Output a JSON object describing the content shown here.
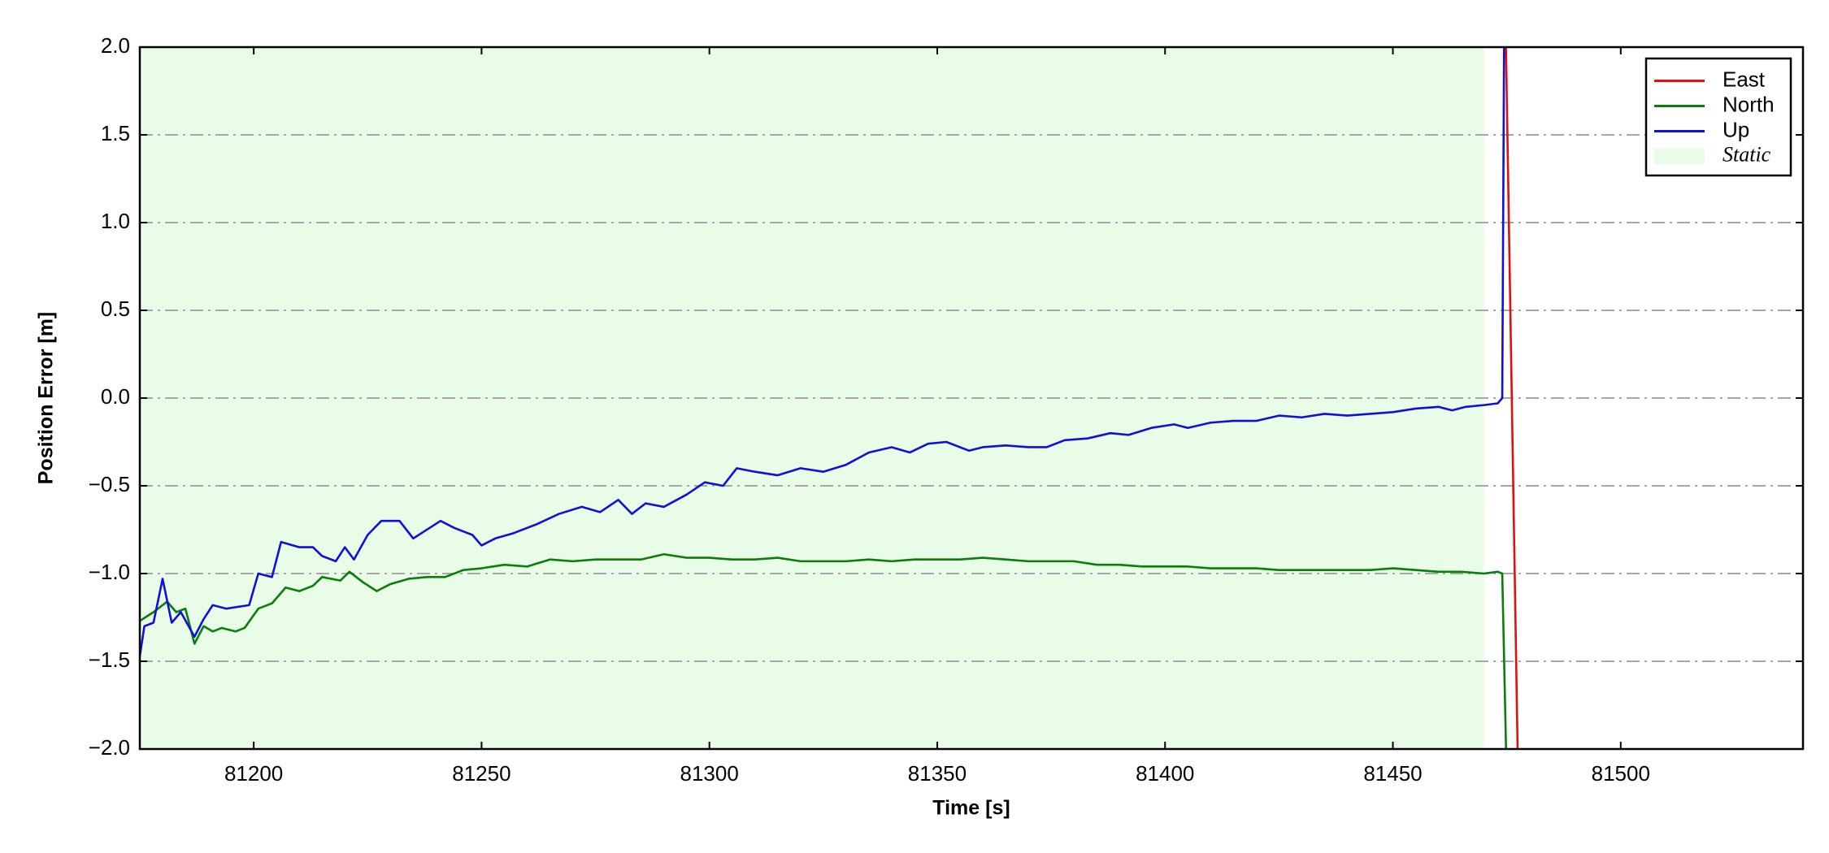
{
  "chart_data": {
    "type": "line",
    "xlabel": "Time [s]",
    "ylabel": "Position Error [m]",
    "xlim": [
      81175,
      81540
    ],
    "ylim": [
      -2,
      2
    ],
    "xticks": [
      81200,
      81250,
      81300,
      81350,
      81400,
      81450,
      81500
    ],
    "yticks": [
      {
        "value": -2,
        "label": "−2.0"
      },
      {
        "value": -1.5,
        "label": "−1.5"
      },
      {
        "value": -1,
        "label": "−1.0"
      },
      {
        "value": -0.5,
        "label": "−0.5"
      },
      {
        "value": 0,
        "label": "0.0"
      },
      {
        "value": 0.5,
        "label": "0.5"
      },
      {
        "value": 1,
        "label": "1.0"
      },
      {
        "value": 1.5,
        "label": "1.5"
      },
      {
        "value": 2,
        "label": "2.0"
      }
    ],
    "grid": true,
    "legend": "upper right",
    "shade": {
      "label": "Static",
      "x": [
        81175,
        81470
      ],
      "color": "#e8fce8"
    },
    "series": [
      {
        "name": "East",
        "color": "#e01010",
        "x": [
          81474.5,
          81477.5
        ],
        "values": [
          2.5,
          -2.2
        ]
      },
      {
        "name": "North",
        "color": "#0a7d0a",
        "x": [
          81175,
          81178,
          81181,
          81183,
          81185,
          81187,
          81189,
          81191,
          81193,
          81196,
          81198,
          81201,
          81204,
          81207,
          81210,
          81213,
          81215,
          81219,
          81221,
          81224,
          81227,
          81230,
          81234,
          81238,
          81242,
          81246,
          81250,
          81255,
          81260,
          81265,
          81270,
          81275,
          81280,
          81285,
          81290,
          81295,
          81300,
          81305,
          81310,
          81315,
          81320,
          81325,
          81330,
          81335,
          81340,
          81345,
          81350,
          81355,
          81360,
          81365,
          81370,
          81375,
          81380,
          81385,
          81390,
          81395,
          81400,
          81405,
          81410,
          81415,
          81420,
          81425,
          81430,
          81435,
          81440,
          81445,
          81450,
          81455,
          81460,
          81465,
          81470,
          81473,
          81474,
          81475
        ],
        "values": [
          -1.27,
          -1.22,
          -1.16,
          -1.22,
          -1.2,
          -1.4,
          -1.3,
          -1.33,
          -1.31,
          -1.33,
          -1.31,
          -1.2,
          -1.17,
          -1.08,
          -1.1,
          -1.07,
          -1.02,
          -1.04,
          -0.99,
          -1.05,
          -1.1,
          -1.06,
          -1.03,
          -1.02,
          -1.02,
          -0.98,
          -0.97,
          -0.95,
          -0.96,
          -0.92,
          -0.93,
          -0.92,
          -0.92,
          -0.92,
          -0.89,
          -0.91,
          -0.91,
          -0.92,
          -0.92,
          -0.91,
          -0.93,
          -0.93,
          -0.93,
          -0.92,
          -0.93,
          -0.92,
          -0.92,
          -0.92,
          -0.91,
          -0.92,
          -0.93,
          -0.93,
          -0.93,
          -0.95,
          -0.95,
          -0.96,
          -0.96,
          -0.96,
          -0.97,
          -0.97,
          -0.97,
          -0.98,
          -0.98,
          -0.98,
          -0.98,
          -0.98,
          -0.97,
          -0.98,
          -0.99,
          -0.99,
          -1.0,
          -0.99,
          -1.0,
          -2.2
        ]
      },
      {
        "name": "Up",
        "color": "#1010d8",
        "x": [
          81175,
          81176,
          81178,
          81180,
          81182,
          81184,
          81187,
          81189,
          81191,
          81194,
          81199,
          81201,
          81204,
          81206,
          81210,
          81213,
          81215,
          81218,
          81220,
          81222,
          81225,
          81228,
          81232,
          81235,
          81241,
          81244,
          81248,
          81250,
          81253,
          81257,
          81262,
          81267,
          81272,
          81276,
          81280,
          81283,
          81286,
          81290,
          81295,
          81299,
          81303,
          81306,
          81310,
          81315,
          81320,
          81325,
          81330,
          81335,
          81340,
          81344,
          81348,
          81352,
          81357,
          81360,
          81365,
          81370,
          81374,
          81378,
          81383,
          81388,
          81392,
          81397,
          81402,
          81405,
          81410,
          81415,
          81420,
          81425,
          81430,
          81435,
          81440,
          81445,
          81450,
          81455,
          81460,
          81463,
          81466,
          81470,
          81473,
          81474,
          81474.5
        ],
        "values": [
          -1.47,
          -1.3,
          -1.28,
          -1.03,
          -1.28,
          -1.22,
          -1.36,
          -1.26,
          -1.18,
          -1.2,
          -1.18,
          -1.0,
          -1.02,
          -0.82,
          -0.85,
          -0.85,
          -0.9,
          -0.93,
          -0.85,
          -0.92,
          -0.78,
          -0.7,
          -0.7,
          -0.8,
          -0.7,
          -0.74,
          -0.78,
          -0.84,
          -0.8,
          -0.77,
          -0.72,
          -0.66,
          -0.62,
          -0.65,
          -0.58,
          -0.66,
          -0.6,
          -0.62,
          -0.55,
          -0.48,
          -0.5,
          -0.4,
          -0.42,
          -0.44,
          -0.4,
          -0.42,
          -0.38,
          -0.31,
          -0.28,
          -0.31,
          -0.26,
          -0.25,
          -0.3,
          -0.28,
          -0.27,
          -0.28,
          -0.28,
          -0.24,
          -0.23,
          -0.2,
          -0.21,
          -0.17,
          -0.15,
          -0.17,
          -0.14,
          -0.13,
          -0.13,
          -0.1,
          -0.11,
          -0.09,
          -0.1,
          -0.09,
          -0.08,
          -0.06,
          -0.05,
          -0.07,
          -0.05,
          -0.04,
          -0.03,
          0.0,
          2.5
        ]
      }
    ]
  }
}
